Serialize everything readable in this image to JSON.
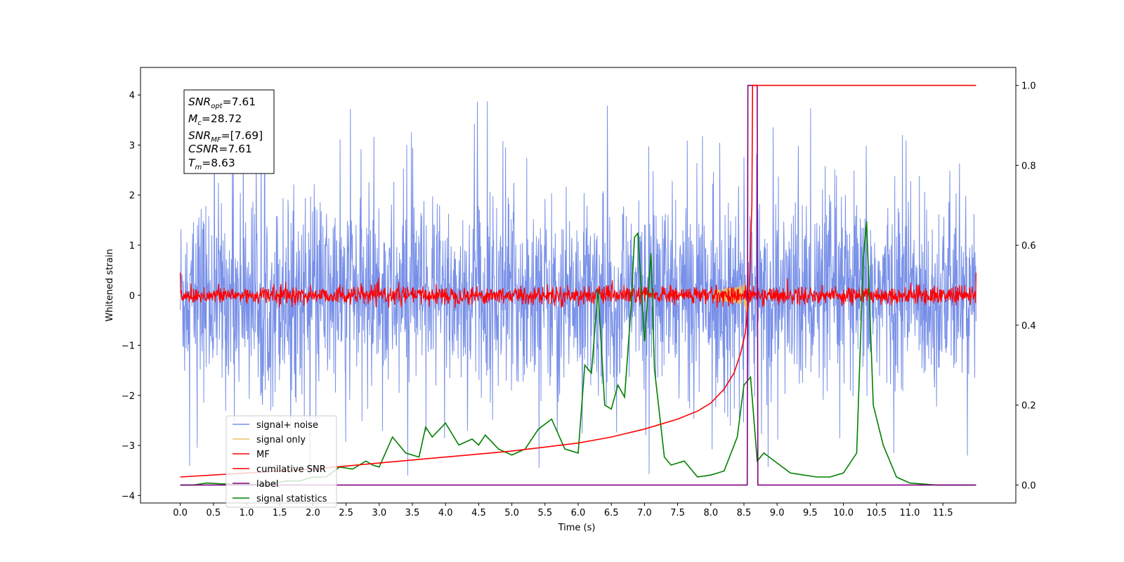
{
  "chart_data": {
    "type": "line",
    "xlabel": "Time (s)",
    "ylabel": "Whitened strain",
    "xlim": [
      -0.6,
      12.6
    ],
    "ylim_left": [
      -4.15,
      4.55
    ],
    "ylim_right": [
      -0.045,
      1.045
    ],
    "x_ticks": [
      "0.0",
      "0.5",
      "1.0",
      "1.5",
      "2.0",
      "2.5",
      "3.0",
      "3.5",
      "4.0",
      "4.5",
      "5.0",
      "5.5",
      "6.0",
      "6.5",
      "7.0",
      "7.5",
      "8.0",
      "8.5",
      "9.0",
      "9.5",
      "10.0",
      "10.5",
      "11.0",
      "11.5"
    ],
    "y_ticks_left": [
      "4",
      "3",
      "2",
      "1",
      "0",
      "−1",
      "−2",
      "−3",
      "−4"
    ],
    "y_ticks_right": [
      "1.0",
      "0.8",
      "0.6",
      "0.4",
      "0.2",
      "0.0"
    ],
    "colors": {
      "signal_noise": "#7890e8",
      "signal_only": "#f0c060",
      "mf": "#ff0000",
      "cumulative_snr": "#ff0000",
      "label": "#800080",
      "signal_statistics": "#008000"
    },
    "annotation": {
      "snr_opt": "=7.61",
      "mc": "=28.72",
      "snr_mf": "=[7.69]",
      "csnr": "=7.61",
      "tm": "=8.63"
    },
    "legend": {
      "placement": "lower-left",
      "entries": [
        "signal+ noise",
        "signal only",
        "MF",
        "cumilative SNR",
        "label",
        "signal statistics"
      ]
    },
    "series": [
      {
        "name": "signal+ noise",
        "axis": "left",
        "description_values": {
          "x_start": 0.0,
          "x_end": 12.0,
          "typical_range": [
            -2.3,
            2.4
          ],
          "max": 4.1,
          "min": -3.6
        }
      },
      {
        "name": "signal only",
        "axis": "left",
        "chirp_peak_time": 8.55,
        "peak_amplitude": 0.45
      },
      {
        "name": "MF",
        "axis": "left",
        "x_start": 0.0,
        "x_end": 12.0,
        "typical_range": [
          -0.2,
          0.25
        ]
      },
      {
        "name": "cumilative SNR",
        "axis": "right",
        "x": [
          0.0,
          1.0,
          2.0,
          3.0,
          4.0,
          5.0,
          5.5,
          6.0,
          6.5,
          7.0,
          7.5,
          7.8,
          8.0,
          8.2,
          8.35,
          8.45,
          8.52,
          8.58,
          8.62,
          8.63,
          9.0,
          10.0,
          11.0,
          12.0
        ],
        "y": [
          0.02,
          0.03,
          0.04,
          0.055,
          0.07,
          0.085,
          0.095,
          0.105,
          0.12,
          0.14,
          0.165,
          0.185,
          0.205,
          0.24,
          0.28,
          0.33,
          0.38,
          0.48,
          0.7,
          1.0,
          1.0,
          1.0,
          1.0,
          1.0
        ]
      },
      {
        "name": "label",
        "axis": "right",
        "x": [
          0.0,
          8.55,
          8.56,
          8.7,
          8.71,
          12.0
        ],
        "y": [
          0.0,
          0.0,
          1.0,
          1.0,
          0.0,
          0.0
        ]
      },
      {
        "name": "signal statistics",
        "axis": "right",
        "x": [
          0.0,
          0.2,
          0.4,
          0.6,
          0.8,
          1.0,
          1.2,
          1.4,
          1.6,
          1.8,
          2.0,
          2.2,
          2.4,
          2.6,
          2.8,
          2.9,
          3.0,
          3.2,
          3.4,
          3.6,
          3.7,
          3.8,
          4.0,
          4.2,
          4.4,
          4.5,
          4.6,
          4.8,
          5.0,
          5.2,
          5.4,
          5.6,
          5.8,
          6.0,
          6.1,
          6.2,
          6.3,
          6.4,
          6.5,
          6.6,
          6.7,
          6.8,
          6.85,
          6.9,
          7.0,
          7.1,
          7.15,
          7.3,
          7.4,
          7.6,
          7.8,
          8.0,
          8.2,
          8.4,
          8.5,
          8.6,
          8.7,
          8.8,
          9.0,
          9.2,
          9.4,
          9.6,
          9.8,
          10.0,
          10.2,
          10.3,
          10.35,
          10.45,
          10.6,
          10.8,
          11.0,
          11.4,
          12.0
        ],
        "y": [
          0.0,
          0.0,
          0.005,
          0.003,
          0.002,
          0.003,
          0.0,
          0.004,
          0.01,
          0.01,
          0.02,
          0.02,
          0.045,
          0.04,
          0.06,
          0.05,
          0.045,
          0.12,
          0.08,
          0.07,
          0.145,
          0.12,
          0.155,
          0.1,
          0.115,
          0.1,
          0.125,
          0.09,
          0.075,
          0.09,
          0.14,
          0.165,
          0.09,
          0.08,
          0.3,
          0.28,
          0.49,
          0.2,
          0.19,
          0.25,
          0.22,
          0.45,
          0.62,
          0.63,
          0.36,
          0.58,
          0.29,
          0.07,
          0.05,
          0.06,
          0.02,
          0.025,
          0.035,
          0.12,
          0.25,
          0.27,
          0.06,
          0.08,
          0.055,
          0.03,
          0.025,
          0.02,
          0.02,
          0.03,
          0.08,
          0.57,
          0.66,
          0.2,
          0.1,
          0.02,
          0.005,
          0.0,
          0.0
        ]
      }
    ]
  }
}
